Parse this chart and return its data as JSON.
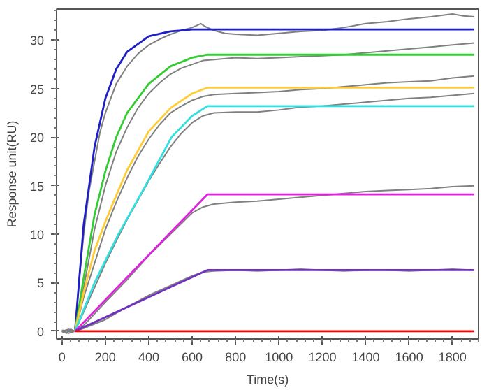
{
  "chart_data": {
    "type": "line",
    "xlabel": "Time(s)",
    "ylabel": "Response unit(RU)",
    "xlim": [
      -25,
      1920
    ],
    "ylim": [
      -0.8,
      33.2
    ],
    "xticks": [
      0,
      200,
      400,
      600,
      800,
      1000,
      1200,
      1400,
      1600,
      1800
    ],
    "yticks": [
      0,
      5,
      10,
      15,
      20,
      25,
      30
    ],
    "grid": false,
    "marker": "none",
    "line_style": "solid",
    "series": [
      {
        "color": "#808080",
        "x": [
          0,
          20,
          40,
          60,
          80,
          100,
          125,
          150,
          175,
          200,
          225,
          250,
          300,
          350,
          400,
          450,
          500,
          550,
          600,
          640,
          660,
          700,
          750,
          800,
          900,
          1000,
          1100,
          1200,
          1300,
          1400,
          1500,
          1600,
          1700,
          1800,
          1850,
          1900
        ],
        "values": [
          0.1,
          -0.2,
          0.2,
          0.0,
          5.5,
          10.0,
          14.5,
          17.5,
          20.5,
          22.5,
          24.0,
          25.5,
          27.3,
          28.6,
          29.5,
          30.1,
          30.6,
          31.0,
          31.3,
          31.7,
          31.4,
          31.0,
          30.7,
          30.6,
          30.5,
          30.7,
          30.9,
          31.0,
          31.3,
          31.7,
          31.9,
          32.2,
          32.4,
          32.7,
          32.5,
          32.4
        ]
      },
      {
        "color": "#808080",
        "x": [
          0,
          30,
          60,
          100,
          150,
          200,
          250,
          300,
          350,
          400,
          450,
          500,
          550,
          600,
          650,
          700,
          800,
          900,
          1000,
          1100,
          1200,
          1300,
          1400,
          1500,
          1600,
          1700,
          1800,
          1900
        ],
        "values": [
          0.0,
          0.2,
          0.0,
          4.5,
          10.5,
          15.0,
          18.5,
          21.0,
          23.0,
          24.5,
          25.6,
          26.5,
          27.1,
          27.5,
          27.9,
          28.0,
          28.2,
          28.1,
          28.2,
          28.3,
          28.4,
          28.5,
          28.7,
          28.9,
          29.1,
          29.3,
          29.5,
          29.7
        ]
      },
      {
        "color": "#808080",
        "x": [
          0,
          30,
          60,
          100,
          150,
          200,
          250,
          300,
          350,
          400,
          450,
          500,
          550,
          600,
          650,
          700,
          800,
          900,
          1000,
          1100,
          1200,
          1300,
          1400,
          1500,
          1600,
          1700,
          1800,
          1900
        ],
        "values": [
          -0.1,
          0.1,
          0.0,
          3.5,
          7.0,
          10.5,
          13.3,
          15.8,
          18.0,
          19.8,
          21.3,
          22.5,
          23.2,
          23.8,
          24.2,
          24.4,
          24.5,
          24.6,
          24.7,
          24.9,
          25.0,
          25.2,
          25.4,
          25.6,
          25.7,
          25.8,
          26.1,
          26.3
        ]
      },
      {
        "color": "#808080",
        "x": [
          0,
          30,
          60,
          100,
          150,
          200,
          250,
          300,
          350,
          400,
          450,
          500,
          550,
          600,
          650,
          700,
          800,
          900,
          1000,
          1100,
          1200,
          1300,
          1400,
          1500,
          1600,
          1700,
          1800,
          1900
        ],
        "values": [
          0.0,
          -0.2,
          0.0,
          2.0,
          4.5,
          7.0,
          9.3,
          11.5,
          13.5,
          15.5,
          17.3,
          19.0,
          20.4,
          21.5,
          22.2,
          22.5,
          22.6,
          22.6,
          22.8,
          23.1,
          23.2,
          23.4,
          23.6,
          23.8,
          24.0,
          24.1,
          24.3,
          24.5
        ]
      },
      {
        "color": "#808080",
        "x": [
          0,
          30,
          60,
          100,
          200,
          300,
          400,
          500,
          600,
          650,
          700,
          800,
          900,
          1000,
          1100,
          1200,
          1300,
          1400,
          1500,
          1600,
          1700,
          1800,
          1900
        ],
        "values": [
          0.1,
          0.0,
          0.0,
          0.6,
          3.0,
          5.3,
          7.8,
          10.0,
          12.2,
          12.8,
          13.1,
          13.3,
          13.4,
          13.6,
          13.8,
          14.0,
          14.2,
          14.4,
          14.5,
          14.6,
          14.7,
          14.9,
          15.0
        ]
      },
      {
        "color": "#808080",
        "x": [
          0,
          30,
          60,
          100,
          200,
          300,
          400,
          500,
          600,
          650,
          700,
          800,
          900,
          1000,
          1100,
          1200,
          1300,
          1400,
          1500,
          1600,
          1700,
          1800,
          1900
        ],
        "values": [
          0.0,
          0.1,
          0.0,
          0.3,
          1.2,
          2.5,
          3.7,
          4.7,
          5.7,
          6.1,
          6.2,
          6.3,
          6.2,
          6.3,
          6.4,
          6.3,
          6.2,
          6.3,
          6.3,
          6.2,
          6.3,
          6.4,
          6.3
        ]
      },
      {
        "color": "#1f1fc8",
        "x": [
          60,
          100,
          150,
          200,
          250,
          300,
          400,
          500,
          600,
          670,
          1900
        ],
        "values": [
          0,
          11,
          19,
          24,
          27,
          28.8,
          30.4,
          30.9,
          31.1,
          31.1,
          31.1
        ]
      },
      {
        "color": "#33cc33",
        "x": [
          60,
          100,
          150,
          200,
          250,
          300,
          400,
          500,
          600,
          670,
          1900
        ],
        "values": [
          0,
          5.5,
          12,
          16.5,
          20,
          22.5,
          25.5,
          27.3,
          28.2,
          28.5,
          28.5
        ]
      },
      {
        "color": "#ffcc33",
        "x": [
          60,
          100,
          150,
          200,
          250,
          300,
          400,
          500,
          600,
          670,
          1900
        ],
        "values": [
          0,
          4,
          8.3,
          11.3,
          14,
          16.6,
          20.6,
          23,
          24.5,
          25.1,
          25.1
        ]
      },
      {
        "color": "#33e0e0",
        "x": [
          60,
          150,
          260,
          385,
          505,
          600,
          670,
          1900
        ],
        "values": [
          0,
          5,
          10,
          15,
          20,
          22.2,
          23.2,
          23.2
        ]
      },
      {
        "color": "#e020e0",
        "x": [
          60,
          670,
          1900
        ],
        "values": [
          0,
          14.1,
          14.1
        ]
      },
      {
        "color": "#7030c0",
        "x": [
          60,
          670,
          1900
        ],
        "values": [
          0,
          6.3,
          6.3
        ]
      },
      {
        "color": "#ff0000",
        "x": [
          60,
          1900
        ],
        "values": [
          0,
          0
        ]
      }
    ]
  }
}
